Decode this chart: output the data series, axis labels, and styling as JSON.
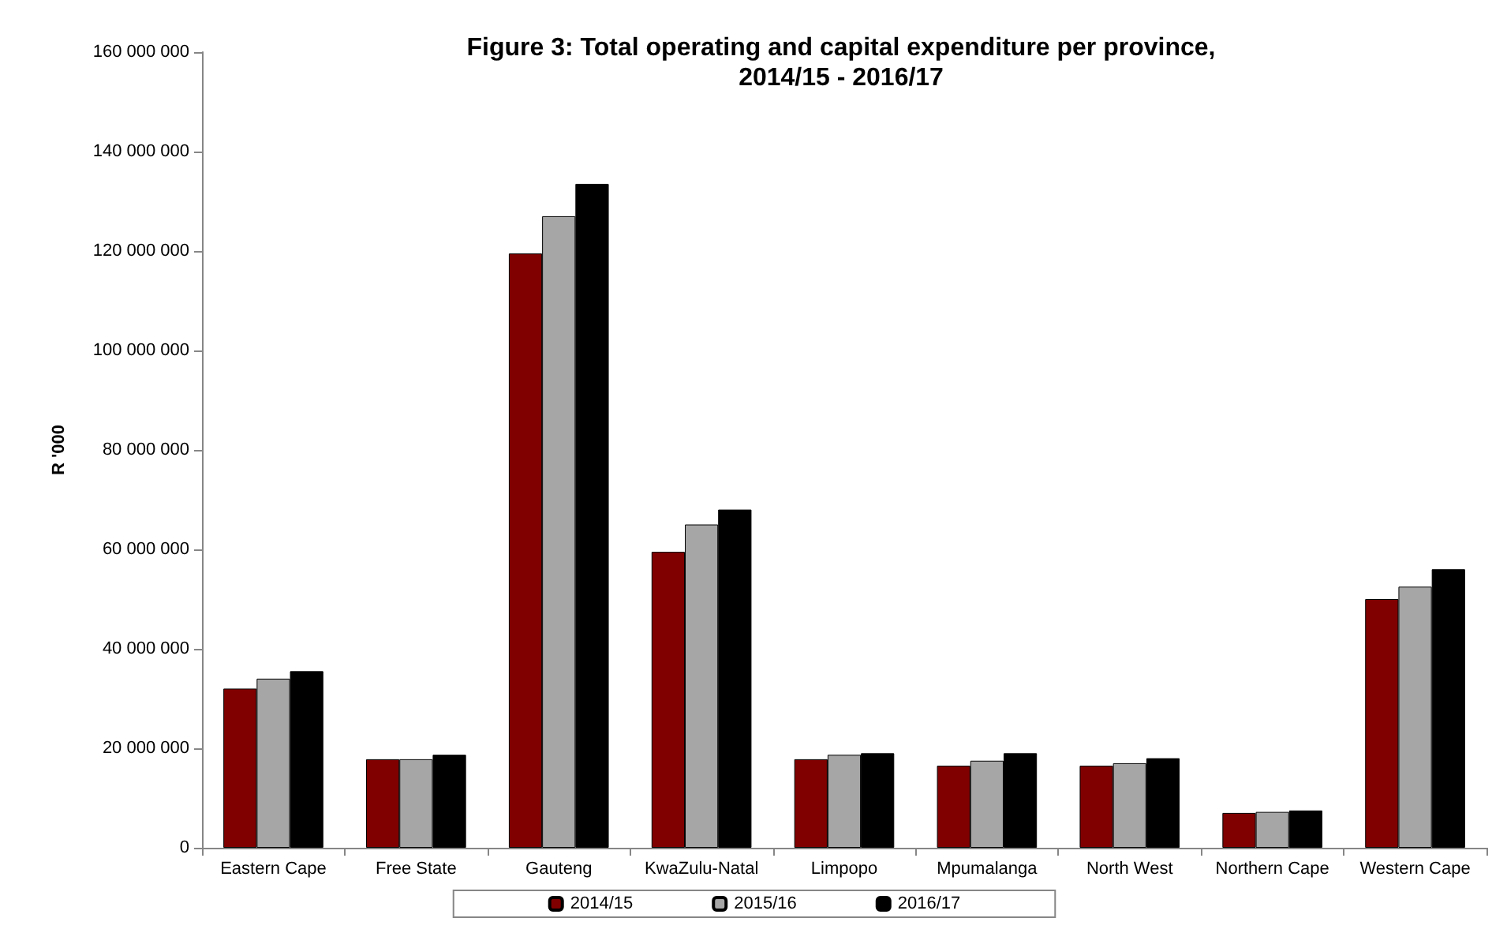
{
  "chart_data": {
    "type": "bar",
    "title": "Figure 3: Total operating and capital expenditure per province,\n2014/15 - 2016/17",
    "ylabel": "R '000",
    "categories": [
      "Eastern Cape",
      "Free State",
      "Gauteng",
      "KwaZulu-Natal",
      "Limpopo",
      "Mpumalanga",
      "North West",
      "Northern Cape",
      "Western Cape"
    ],
    "series": [
      {
        "name": "2014/15",
        "color": "#800000",
        "values": [
          32000000,
          17800000,
          119500000,
          59500000,
          17800000,
          16500000,
          16500000,
          7000000,
          50000000
        ]
      },
      {
        "name": "2015/16",
        "color": "#a6a6a6",
        "values": [
          34000000,
          17800000,
          127000000,
          65000000,
          18700000,
          17500000,
          17000000,
          7200000,
          52500000
        ]
      },
      {
        "name": "2016/17",
        "color": "#000000",
        "values": [
          35500000,
          18700000,
          133500000,
          68000000,
          19000000,
          19000000,
          18000000,
          7500000,
          56000000
        ]
      }
    ],
    "ylim": [
      0,
      160000000
    ],
    "yticks": [
      {
        "value": 0,
        "label": "0"
      },
      {
        "value": 20000000,
        "label": "20 000 000"
      },
      {
        "value": 40000000,
        "label": "40 000 000"
      },
      {
        "value": 60000000,
        "label": "60 000 000"
      },
      {
        "value": 80000000,
        "label": "80 000 000"
      },
      {
        "value": 100000000,
        "label": "100 000 000"
      },
      {
        "value": 120000000,
        "label": "120 000 000"
      },
      {
        "value": 140000000,
        "label": "140 000 000"
      },
      {
        "value": 160000000,
        "label": "160 000 000"
      }
    ],
    "grid": false,
    "legend": "bottom"
  }
}
